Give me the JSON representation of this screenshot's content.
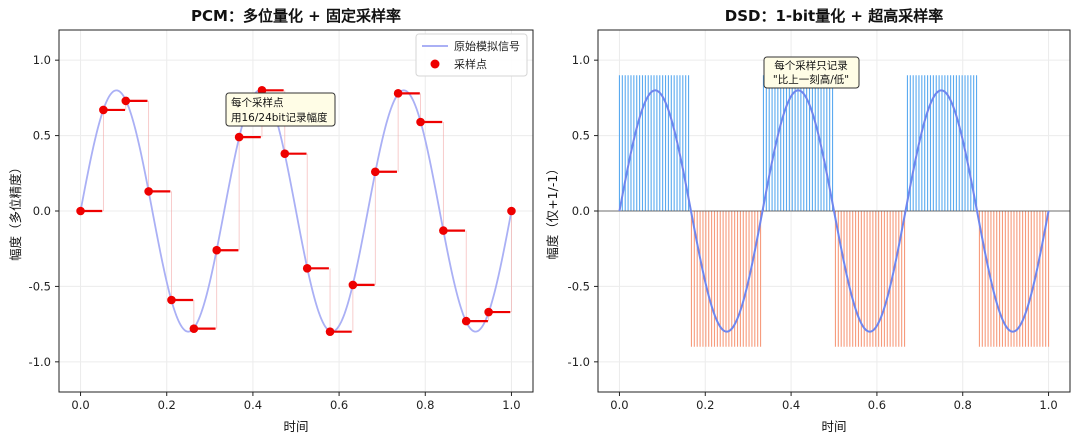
{
  "chart_data": [
    {
      "type": "line",
      "title": "PCM：多位量化 + 固定采样率",
      "xlabel": "时间",
      "ylabel": "幅度（多位精度）",
      "xlim": [
        -0.05,
        1.05
      ],
      "ylim": [
        -1.2,
        1.2
      ],
      "xticks": [
        0.0,
        0.2,
        0.4,
        0.6,
        0.8,
        1.0
      ],
      "xtick_labels": [
        "0.0",
        "0.2",
        "0.4",
        "0.6",
        "0.8",
        "1.0"
      ],
      "yticks": [
        1.0,
        0.5,
        0.0,
        -0.5,
        -1.0
      ],
      "ytick_labels": [
        "1.0",
        "0.5",
        "0.0",
        "-0.5",
        "-1.0"
      ],
      "grid": true,
      "legend_position": "top-right",
      "signal": {
        "name": "原始模拟信号",
        "amplitude": 0.8,
        "cycles": 3,
        "color": "#aab0f5"
      },
      "series": [
        {
          "name": "采样点",
          "color": "#ee0000",
          "x": [
            0.0,
            0.053,
            0.105,
            0.158,
            0.211,
            0.263,
            0.316,
            0.368,
            0.421,
            0.474,
            0.526,
            0.579,
            0.632,
            0.684,
            0.737,
            0.789,
            0.842,
            0.895,
            0.947,
            1.0
          ],
          "y": [
            0.0,
            0.67,
            0.73,
            0.13,
            -0.59,
            -0.78,
            -0.26,
            0.49,
            0.8,
            0.38,
            -0.38,
            -0.8,
            -0.49,
            0.26,
            0.78,
            0.59,
            -0.13,
            -0.73,
            -0.67,
            0.0
          ]
        }
      ],
      "annotation": {
        "lines": [
          "每个采样点",
          "用16/24bit记录幅度"
        ],
        "x": 0.35,
        "y": 0.68
      }
    },
    {
      "type": "bar",
      "title": "DSD：1-bit量化 + 超高采样率",
      "xlabel": "时间",
      "ylabel": "幅度（仅+1/-1）",
      "xlim": [
        -0.05,
        1.05
      ],
      "ylim": [
        -1.2,
        1.2
      ],
      "xticks": [
        0.0,
        0.2,
        0.4,
        0.6,
        0.8,
        1.0
      ],
      "xtick_labels": [
        "0.0",
        "0.2",
        "0.4",
        "0.6",
        "0.8",
        "1.0"
      ],
      "yticks": [
        1.0,
        0.5,
        0.0,
        -0.5,
        -1.0
      ],
      "ytick_labels": [
        "1.0",
        "0.5",
        "0.0",
        "-0.5",
        "-1.0"
      ],
      "grid": true,
      "signal": {
        "amplitude": 0.8,
        "cycles": 3,
        "color": "#6f86ee"
      },
      "pulses": {
        "count": 150,
        "high": 0.9,
        "low": -0.9,
        "positive_color": "#5aaaf0",
        "negative_color": "#f79b7c"
      },
      "annotation": {
        "lines": [
          "每个采样只记录",
          "\"比上一刻高/低\""
        ],
        "x": 0.42,
        "y": 0.92
      }
    }
  ],
  "legend": {
    "line_label": "原始模拟信号",
    "marker_label": "采样点"
  }
}
